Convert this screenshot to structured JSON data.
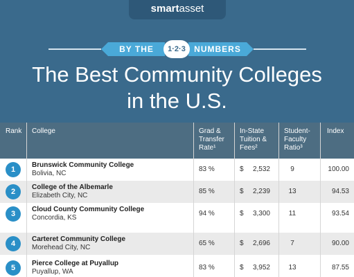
{
  "header": {
    "logo_bold": "smart",
    "logo_light": "asset",
    "banner_left": "BY THE",
    "banner_center": "1·2·3",
    "banner_right": "NUMBERS",
    "title_line1": "The Best Community Colleges",
    "title_line2": "in the U.S."
  },
  "colors": {
    "header_bg": "#3a6a8c",
    "banner": "#4aa9d8",
    "table_header_bg": "#4d6d82",
    "badge": "#2a8fc7",
    "row_alt": "#eaeaea"
  },
  "table": {
    "columns": {
      "rank": "Rank",
      "college": "College",
      "grad_1": "Grad &",
      "grad_2": "Transfer",
      "grad_3": "Rate¹",
      "tuition_1": "In-State",
      "tuition_2": "Tuition &",
      "tuition_3": "Fees²",
      "ratio_1": "Student-",
      "ratio_2": "Faculty",
      "ratio_3": "Ratio³",
      "index": "Index"
    },
    "rows": [
      {
        "rank": "1",
        "name": "Brunswick Community College",
        "location": "Bolivia, NC",
        "grad": "83 %",
        "dollar": "$",
        "tuition": "2,532",
        "ratio": "9",
        "index": "100.00"
      },
      {
        "rank": "2",
        "name": "College of the Albemarle",
        "location": "Elizabeth City, NC",
        "grad": "85 %",
        "dollar": "$",
        "tuition": "2,239",
        "ratio": "13",
        "index": "94.53"
      },
      {
        "rank": "3",
        "name": "Cloud County Community College",
        "location": "Concordia, KS",
        "grad": "94 %",
        "dollar": "$",
        "tuition": "3,300",
        "ratio": "11",
        "index": "93.54"
      },
      {
        "rank": "4",
        "name": "Carteret Community College",
        "location": "Morehead City, NC",
        "grad": "65 %",
        "dollar": "$",
        "tuition": "2,696",
        "ratio": "7",
        "index": "90.00"
      },
      {
        "rank": "5",
        "name": "Pierce College at Puyallup",
        "location": "Puyallup, WA",
        "grad": "83 %",
        "dollar": "$",
        "tuition": "3,952",
        "ratio": "13",
        "index": "87.55"
      }
    ]
  }
}
